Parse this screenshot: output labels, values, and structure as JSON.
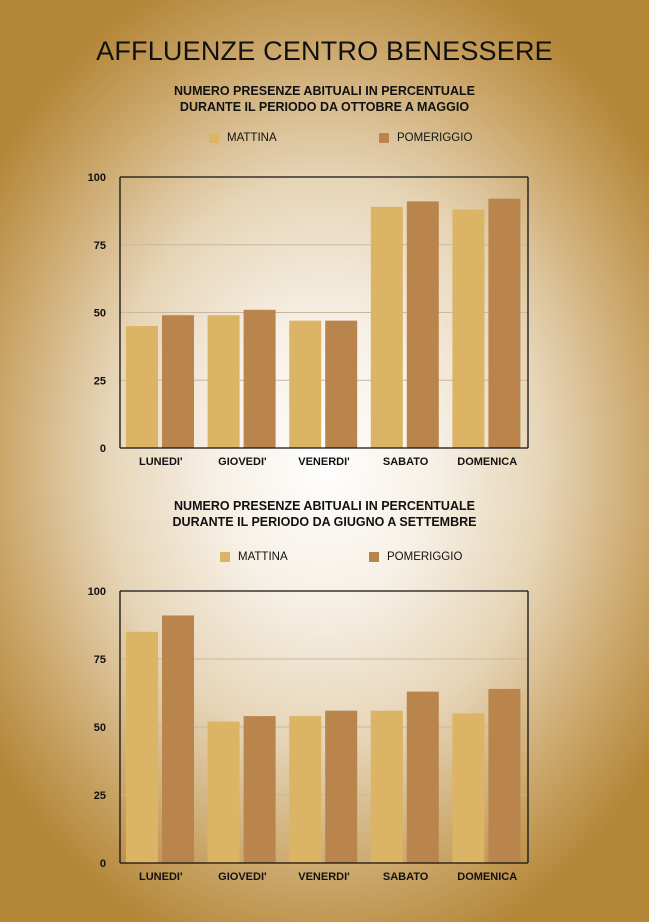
{
  "title": "AFFLUENZE CENTRO BENESSERE",
  "colors": {
    "mattina": "#dcb466",
    "pomeriggio": "#b9854c",
    "grid": "#c8b89e",
    "axis": "#111111"
  },
  "chart_data": [
    {
      "type": "bar",
      "title_lines": [
        "NUMERO PRESENZE ABITUALI IN PERCENTUALE",
        "DURANTE IL PERIODO DA OTTOBRE A MAGGIO"
      ],
      "legend": [
        "MATTINA",
        "POMERIGGIO"
      ],
      "categories": [
        "LUNEDI'",
        "GIOVEDI'",
        "VENERDI'",
        "SABATO",
        "DOMENICA"
      ],
      "series": [
        {
          "name": "MATTINA",
          "values": [
            45,
            49,
            47,
            89,
            88
          ]
        },
        {
          "name": "POMERIGGIO",
          "values": [
            49,
            51,
            47,
            91,
            92
          ]
        }
      ],
      "ylim": [
        0,
        100
      ],
      "yticks": [
        0,
        25,
        50,
        75,
        100
      ],
      "grid": true,
      "legend_position": "top"
    },
    {
      "type": "bar",
      "title_lines": [
        "NUMERO PRESENZE ABITUALI IN PERCENTUALE",
        "DURANTE IL PERIODO DA GIUGNO A SETTEMBRE"
      ],
      "legend": [
        "MATTINA",
        "POMERIGGIO"
      ],
      "categories": [
        "LUNEDI'",
        "GIOVEDI'",
        "VENERDI'",
        "SABATO",
        "DOMENICA"
      ],
      "series": [
        {
          "name": "MATTINA",
          "values": [
            85,
            52,
            54,
            56,
            55
          ]
        },
        {
          "name": "POMERIGGIO",
          "values": [
            91,
            54,
            56,
            63,
            64
          ]
        }
      ],
      "ylim": [
        0,
        100
      ],
      "yticks": [
        0,
        25,
        50,
        75,
        100
      ],
      "grid": true,
      "legend_position": "top"
    }
  ]
}
